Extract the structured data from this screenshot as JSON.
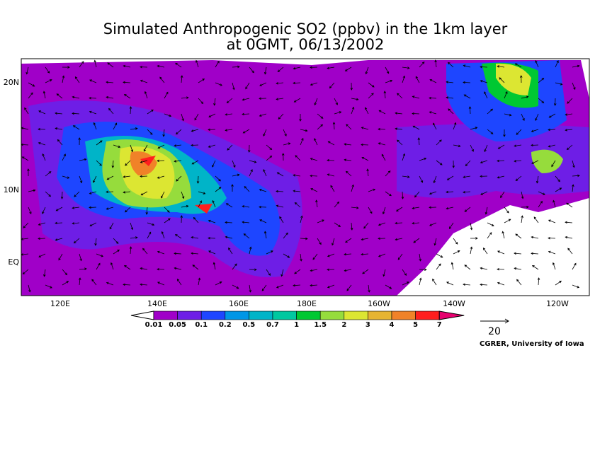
{
  "header": {
    "title": "Simulated Anthropogenic SO2 (ppbv) in the 1km layer",
    "subtitle": "at 0GMT, 06/13/2002"
  },
  "map": {
    "lat_labels": [
      "20N",
      "10N",
      "EQ"
    ],
    "lon_labels": [
      "120E",
      "140E",
      "160E",
      "180E",
      "160W",
      "140W",
      "120W"
    ]
  },
  "colorbar": {
    "levels": [
      0.01,
      0.05,
      0.1,
      0.2,
      0.5,
      0.7,
      1,
      1.5,
      2,
      3,
      4,
      5,
      7
    ],
    "colors": [
      "#ffffff",
      "#a000c8",
      "#6e1ee6",
      "#1e46ff",
      "#0096e6",
      "#00b4c8",
      "#00c8a0",
      "#00c832",
      "#96dc3c",
      "#dce632",
      "#e6b432",
      "#f08228",
      "#ff1e1e",
      "#e6006e"
    ]
  },
  "vector_scale": 20,
  "credit": "CGRER, University of Iowa"
}
